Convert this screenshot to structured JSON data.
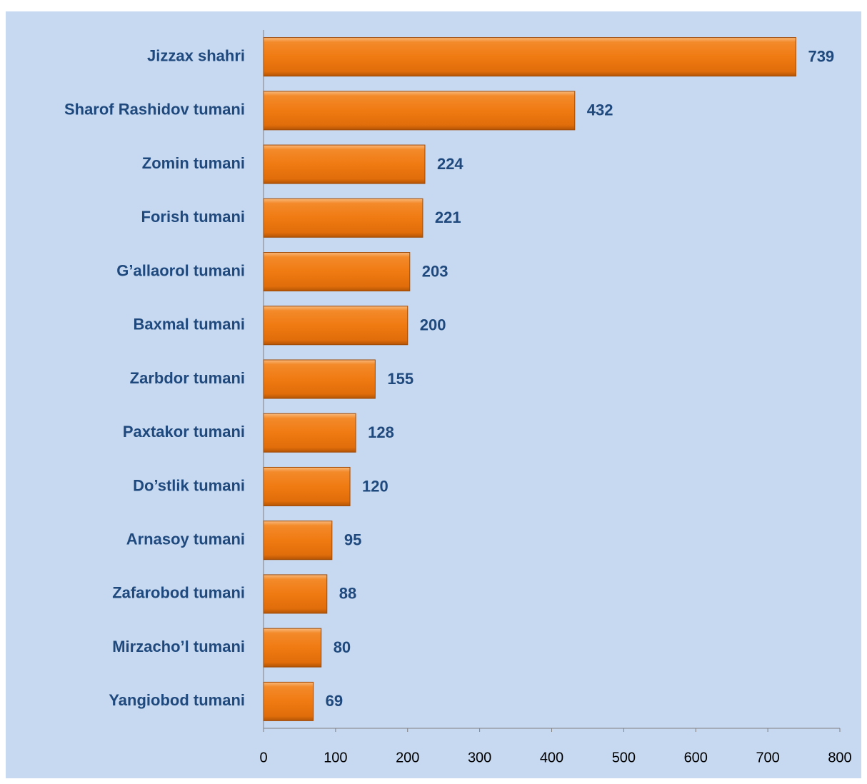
{
  "chart_data": {
    "type": "bar",
    "orientation": "horizontal",
    "categories": [
      "Jizzax shahri",
      "Sharof Rashidov tumani",
      "Zomin tumani",
      "Forish tumani",
      "G’allaorol tumani",
      "Baxmal tumani",
      "Zarbdor tumani",
      "Paxtakor tumani",
      "Do’stlik tumani",
      "Arnasoy tumani",
      "Zafarobod tumani",
      "Mirzacho’l tumani",
      "Yangiobod tumani"
    ],
    "values": [
      739,
      432,
      224,
      221,
      203,
      200,
      155,
      128,
      120,
      95,
      88,
      80,
      69
    ],
    "color": "#f07a12",
    "xlim": [
      0,
      800
    ],
    "xticks": [
      0,
      100,
      200,
      300,
      400,
      500,
      600,
      700,
      800
    ],
    "grid": false
  }
}
